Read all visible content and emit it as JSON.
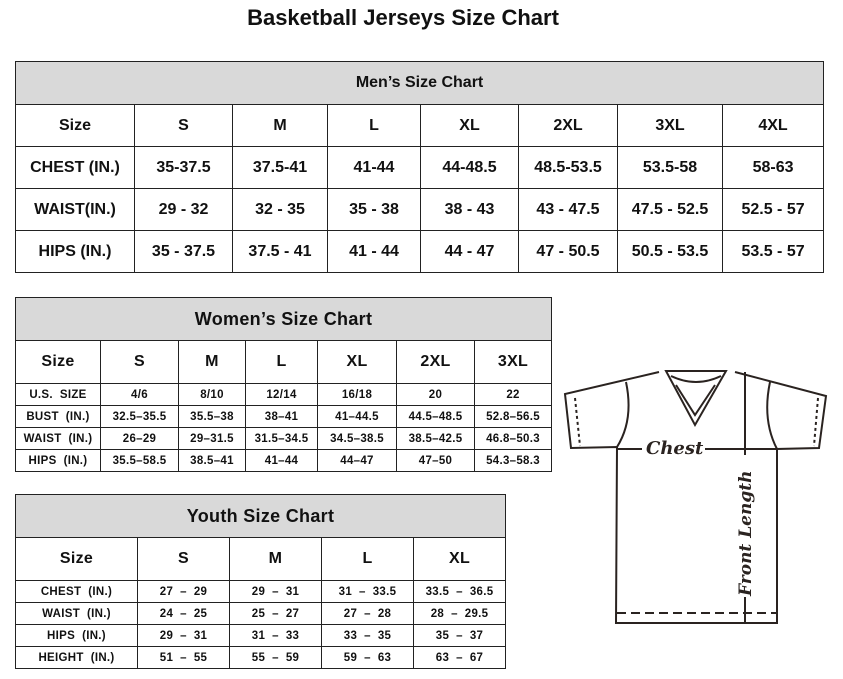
{
  "title": "Basketball Jerseys Size Chart",
  "men": {
    "title": "Men’s Size Chart",
    "header": [
      "Size",
      "S",
      "M",
      "L",
      "XL",
      "2XL",
      "3XL",
      "4XL"
    ],
    "rows": [
      [
        "CHEST (IN.)",
        "35-37.5",
        "37.5-41",
        "41-44",
        "44-48.5",
        "48.5-53.5",
        "53.5-58",
        "58-63"
      ],
      [
        "WAIST(IN.)",
        "29 - 32",
        "32 - 35",
        "35 - 38",
        "38 - 43",
        "43 - 47.5",
        "47.5 - 52.5",
        "52.5 - 57"
      ],
      [
        "HIPS (IN.)",
        "35 - 37.5",
        "37.5 - 41",
        "41 - 44",
        "44 - 47",
        "47 - 50.5",
        "50.5 - 53.5",
        "53.5 - 57"
      ]
    ]
  },
  "women": {
    "title": "Women’s Size Chart",
    "header": [
      "Size",
      "S",
      "M",
      "L",
      "XL",
      "2XL",
      "3XL"
    ],
    "rows": [
      [
        "U.S.  SIZE",
        "4/6",
        "8/10",
        "12/14",
        "16/18",
        "20",
        "22"
      ],
      [
        "BUST  (IN.)",
        "32.5–35.5",
        "35.5–38",
        "38–41",
        "41–44.5",
        "44.5–48.5",
        "52.8–56.5"
      ],
      [
        "WAIST  (IN.)",
        "26–29",
        "29–31.5",
        "31.5–34.5",
        "34.5–38.5",
        "38.5–42.5",
        "46.8–50.3"
      ],
      [
        "HIPS  (IN.)",
        "35.5–58.5",
        "38.5–41",
        "41–44",
        "44–47",
        "47–50",
        "54.3–58.3"
      ]
    ]
  },
  "youth": {
    "title": "Youth Size Chart",
    "header": [
      "Size",
      "S",
      "M",
      "L",
      "XL"
    ],
    "rows": [
      [
        "CHEST  (IN.)",
        "27  –  29",
        "29  –  31",
        "31  –  33.5",
        "33.5  –  36.5"
      ],
      [
        "WAIST  (IN.)",
        "24  –  25",
        "25  –  27",
        "27  –  28",
        "28  –  29.5"
      ],
      [
        "HIPS  (IN.)",
        "29  –  31",
        "31  –  33",
        "33  –  35",
        "35  –  37"
      ],
      [
        "HEIGHT  (IN.)",
        "51  –  55",
        "55  –  59",
        "59  –  63",
        "63  –  67"
      ]
    ]
  },
  "diagram": {
    "chest_label": "Chest",
    "length_label": "Front Length"
  }
}
